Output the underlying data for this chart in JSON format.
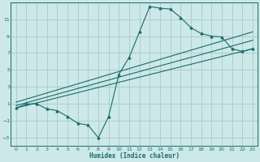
{
  "xlabel": "Humidex (Indice chaleur)",
  "ylabel": "",
  "bg_color": "#cce8e8",
  "grid_color": "#aacaca",
  "line_color": "#1a6b6b",
  "xlim": [
    -0.5,
    23.5
  ],
  "ylim": [
    -4,
    13
  ],
  "xticks": [
    0,
    1,
    2,
    3,
    4,
    5,
    6,
    7,
    8,
    9,
    10,
    11,
    12,
    13,
    14,
    15,
    16,
    17,
    18,
    19,
    20,
    21,
    22,
    23
  ],
  "yticks": [
    -3,
    -1,
    1,
    3,
    5,
    7,
    9,
    11
  ],
  "curve1_x": [
    0,
    1,
    2,
    3,
    4,
    5,
    6,
    7,
    8,
    9,
    10,
    11,
    12,
    13,
    14,
    15,
    16,
    17,
    18,
    19,
    20,
    21,
    22,
    23
  ],
  "curve1_y": [
    0.5,
    1.0,
    1.0,
    0.4,
    0.2,
    -0.5,
    -1.3,
    -1.5,
    -3.0,
    -0.5,
    4.5,
    6.5,
    9.5,
    12.5,
    12.3,
    12.2,
    11.2,
    10.0,
    9.3,
    9.0,
    8.9,
    7.5,
    7.2,
    7.5
  ],
  "line1_x": [
    0,
    23
  ],
  "line1_y": [
    0.5,
    7.5
  ],
  "line2_x": [
    0,
    23
  ],
  "line2_y": [
    0.8,
    8.5
  ],
  "line3_x": [
    0,
    23
  ],
  "line3_y": [
    1.2,
    9.5
  ]
}
